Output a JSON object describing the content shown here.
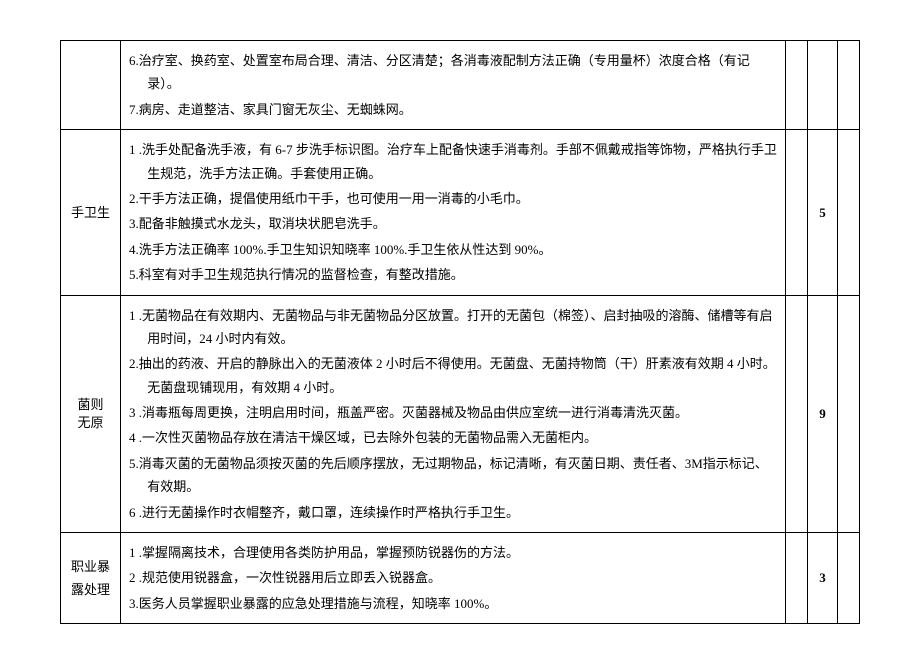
{
  "table": {
    "rows": [
      {
        "category": "",
        "items": [
          "6.治疗室、换药室、处置室布局合理、清洁、分区清楚；各消毒液配制方法正确（专用量杯）浓度合格（有记录）。",
          "7.病房、走道整洁、家具门窗无灰尘、无蜘蛛网。"
        ],
        "score": "",
        "showCategory": false,
        "showScore": false
      },
      {
        "category": "手卫生",
        "items": [
          "1 .洗手处配备洗手液，有 6-7 步洗手标识图。治疗车上配备快速手消毒剂。手部不佩戴戒指等饰物，严格执行手卫生规范，洗手方法正确。手套使用正确。",
          "2.干手方法正确，提倡使用纸巾干手，也可使用一用一消毒的小毛巾。",
          "3.配备非触摸式水龙头，取消块状肥皂洗手。",
          "4.洗手方法正确率 100%.手卫生知识知晓率 100%.手卫生依从性达到 90%。",
          "5.科室有对手卫生规范执行情况的监督检查，有整改措施。"
        ],
        "score": "5",
        "showCategory": true,
        "showScore": true
      },
      {
        "category": "菌则无原",
        "items": [
          "1    .无菌物品在有效期内、无菌物品与非无菌物品分区放置。打开的无菌包（棉签）、启封抽吸的溶酶、储槽等有启用时间，24 小时内有效。",
          "2.抽出的药液、开启的静脉出入的无菌液体 2 小时后不得使用。无菌盘、无菌持物筒（干）肝素液有效期 4 小时。无菌盘现铺现用，有效期 4 小时。",
          "3 .消毒瓶每周更换，注明启用时间，瓶盖严密。灭菌器械及物品由供应室统一进行消毒清洗灭菌。",
          "4 .一次性灭菌物品存放在清洁干燥区域，已去除外包装的无菌物品需入无菌柜内。",
          "5.消毒灭菌的无菌物品须按灭菌的先后顺序摆放，无过期物品，标记清晰，有灭菌日期、责任者、3M指示标记、有效期。",
          "6 .进行无菌操作时衣帽整齐，戴口罩，连续操作时严格执行手卫生。"
        ],
        "score": "9",
        "showCategory": true,
        "showScore": true,
        "verticalCategory": true
      },
      {
        "category": "职业暴露处理",
        "items": [
          "1        .掌握隔离技术，合理使用各类防护用品，掌握预防锐器伤的方法。",
          "2 .规范使用锐器盒，一次性锐器用后立即丢入锐器盒。",
          "3.医务人员掌握职业暴露的应急处理措施与流程，知晓率 100%。"
        ],
        "score": "3",
        "showCategory": true,
        "showScore": true
      }
    ]
  }
}
